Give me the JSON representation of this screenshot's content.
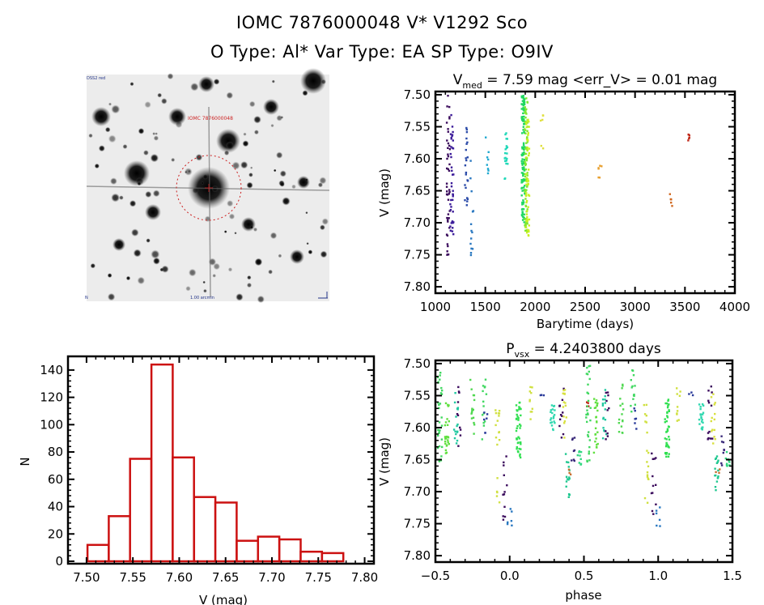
{
  "header": {
    "title_line1": "IOMC 7876000048    V* V1292 Sco",
    "title_line2": "O Type: Al*  Var Type: EA  SP Type: O9IV"
  },
  "finder_chart": {
    "label_top_left": "DSS2 red",
    "label_target": "IOMC 7876000048",
    "label_bottom": "1.00 arcmin",
    "label_bottom_left": "N",
    "compass_icon": "east-arrow",
    "circle_color": "#cc2222"
  },
  "chart_data": [
    {
      "type": "scatter",
      "id": "lightcurve",
      "title": "V_med = 7.59 mag <err_V> = 0.01 mag",
      "title_parts": {
        "v": "V",
        "sub": "med",
        "rest": " = 7.59 mag <err_V> = 0.01 mag"
      },
      "xlabel": "Barytime (days)",
      "ylabel": "V (mag)",
      "xlim": [
        1000,
        4000
      ],
      "ylim": [
        7.81,
        7.495
      ],
      "y_inverted": true,
      "xticks": [
        1000,
        1500,
        2000,
        2500,
        3000,
        3500,
        4000
      ],
      "xtick_labels": [
        "1000",
        "1500",
        "2000",
        "2500",
        "3000",
        "3500",
        "4000"
      ],
      "yticks": [
        7.5,
        7.55,
        7.6,
        7.65,
        7.7,
        7.75,
        7.8
      ],
      "ytick_labels": [
        "7.50",
        "7.55",
        "7.60",
        "7.65",
        "7.70",
        "7.75",
        "7.80"
      ],
      "groups": [
        {
          "x": 1130,
          "color": "#3a0a5c",
          "ymin": 7.5,
          "ymax": 7.76,
          "n": 45
        },
        {
          "x": 1165,
          "color": "#3c1c9a",
          "ymin": 7.53,
          "ymax": 7.72,
          "n": 40
        },
        {
          "x": 1310,
          "color": "#2a4aa8",
          "ymin": 7.54,
          "ymax": 7.675,
          "n": 22
        },
        {
          "x": 1365,
          "color": "#2a78c0",
          "ymin": 7.59,
          "ymax": 7.76,
          "n": 14
        },
        {
          "x": 1520,
          "color": "#20a8d0",
          "ymin": 7.55,
          "ymax": 7.625,
          "n": 8
        },
        {
          "x": 1710,
          "color": "#20d8b8",
          "ymin": 7.56,
          "ymax": 7.64,
          "n": 20
        },
        {
          "x": 1880,
          "color": "#20d860",
          "ymin": 7.5,
          "ymax": 7.7,
          "n": 120
        },
        {
          "x": 1910,
          "color": "#80e830",
          "ymin": 7.505,
          "ymax": 7.72,
          "n": 80
        },
        {
          "x": 1925,
          "color": "#c8f020",
          "ymin": 7.535,
          "ymax": 7.73,
          "n": 50
        },
        {
          "x": 2070,
          "color": "#e0e040",
          "ymin": 7.53,
          "ymax": 7.59,
          "n": 6
        },
        {
          "x": 2650,
          "color": "#e8a030",
          "ymin": 7.61,
          "ymax": 7.64,
          "n": 6
        },
        {
          "x": 3360,
          "color": "#d06820",
          "ymin": 7.655,
          "ymax": 7.675,
          "n": 5
        },
        {
          "x": 3545,
          "color": "#c02a1a",
          "ymin": 7.56,
          "ymax": 7.578,
          "n": 5
        }
      ]
    },
    {
      "type": "bar",
      "id": "histogram",
      "title": "",
      "xlabel": "V (mag)",
      "ylabel": "N",
      "xlim": [
        7.48,
        7.81
      ],
      "ylim": [
        0,
        150
      ],
      "xticks": [
        7.5,
        7.55,
        7.6,
        7.65,
        7.7,
        7.75,
        7.8
      ],
      "xtick_labels": [
        "7.50",
        "7.55",
        "7.60",
        "7.65",
        "7.70",
        "7.75",
        "7.80"
      ],
      "yticks": [
        0,
        20,
        40,
        60,
        80,
        100,
        120,
        140
      ],
      "ytick_labels": [
        "0",
        "20",
        "40",
        "60",
        "80",
        "100",
        "120",
        "140"
      ],
      "bin_edges": [
        7.501,
        7.524,
        7.547,
        7.57,
        7.593,
        7.616,
        7.639,
        7.662,
        7.685,
        7.708,
        7.731,
        7.754,
        7.777
      ],
      "values": [
        12,
        33,
        75,
        144,
        76,
        47,
        43,
        15,
        18,
        16,
        7,
        6
      ],
      "bar_color": "#cc1111"
    },
    {
      "type": "scatter",
      "id": "phased",
      "title": "P_vsx = 4.2403800 days",
      "title_parts": {
        "v": "P",
        "sub": "vsx",
        "rest": " = 4.2403800 days"
      },
      "xlabel": "phase",
      "ylabel": "V (mag)",
      "xlim": [
        -0.5,
        1.5
      ],
      "ylim": [
        7.81,
        7.495
      ],
      "y_inverted": true,
      "xticks": [
        -0.5,
        0.0,
        0.5,
        1.0,
        1.5
      ],
      "xtick_labels": [
        "−0.5",
        "0.0",
        "0.5",
        "1.0",
        "1.5"
      ],
      "yticks": [
        7.5,
        7.55,
        7.6,
        7.65,
        7.7,
        7.75,
        7.8
      ],
      "ytick_labels": [
        "7.50",
        "7.55",
        "7.60",
        "7.65",
        "7.70",
        "7.75",
        "7.80"
      ],
      "period_days": 4.24038,
      "primary_eclipse": {
        "phase": 0.0,
        "depth_mag": 7.755
      },
      "secondary_eclipse": {
        "phase": 0.4,
        "depth_mag": 7.71
      },
      "out_of_eclipse_mag": [
        7.5,
        7.65
      ],
      "clusters": [
        {
          "phase": -0.47,
          "color": "#40d860",
          "ymin": 7.5,
          "ymax": 7.655,
          "n": 30
        },
        {
          "phase": -0.42,
          "color": "#60e040",
          "ymin": 7.555,
          "ymax": 7.64,
          "n": 25
        },
        {
          "phase": -0.36,
          "color": "#20c8a0",
          "ymin": 7.54,
          "ymax": 7.625,
          "n": 16
        },
        {
          "phase": -0.34,
          "color": "#3a0a5c",
          "ymin": 7.535,
          "ymax": 7.63,
          "n": 10
        },
        {
          "phase": -0.25,
          "color": "#50d850",
          "ymin": 7.525,
          "ymax": 7.61,
          "n": 16
        },
        {
          "phase": -0.17,
          "color": "#40d860",
          "ymin": 7.505,
          "ymax": 7.62,
          "n": 14
        },
        {
          "phase": -0.16,
          "color": "#2a3a9a",
          "ymin": 7.57,
          "ymax": 7.61,
          "n": 6
        },
        {
          "phase": -0.08,
          "color": "#d0e040",
          "ymin": 7.555,
          "ymax": 7.72,
          "n": 18
        },
        {
          "phase": -0.03,
          "color": "#3a0a5c",
          "ymin": 7.64,
          "ymax": 7.75,
          "n": 12
        },
        {
          "phase": 0.0,
          "color": "#2a78c0",
          "ymin": 7.72,
          "ymax": 7.76,
          "n": 6
        },
        {
          "phase": 0.06,
          "color": "#30e050",
          "ymin": 7.555,
          "ymax": 7.65,
          "n": 40
        },
        {
          "phase": 0.14,
          "color": "#d0e040",
          "ymin": 7.535,
          "ymax": 7.59,
          "n": 10
        },
        {
          "phase": 0.22,
          "color": "#2a3a9a",
          "ymin": 7.535,
          "ymax": 7.55,
          "n": 3
        },
        {
          "phase": 0.29,
          "color": "#30d8b0",
          "ymin": 7.56,
          "ymax": 7.605,
          "n": 20
        },
        {
          "phase": 0.35,
          "color": "#3a0a5c",
          "ymin": 7.535,
          "ymax": 7.62,
          "n": 12
        },
        {
          "phase": 0.37,
          "color": "#d8e040",
          "ymin": 7.54,
          "ymax": 7.63,
          "n": 14
        },
        {
          "phase": 0.39,
          "color": "#20c890",
          "ymin": 7.64,
          "ymax": 7.71,
          "n": 16
        },
        {
          "phase": 0.4,
          "color": "#c87030",
          "ymin": 7.66,
          "ymax": 7.68,
          "n": 3
        },
        {
          "phase": 0.43,
          "color": "#3a2a7a",
          "ymin": 7.61,
          "ymax": 7.66,
          "n": 8
        },
        {
          "phase": 0.47,
          "color": "#30d880",
          "ymin": 7.63,
          "ymax": 7.66,
          "n": 10
        },
        {
          "phase": 0.52,
          "color": "#c02a1a",
          "ymin": 7.56,
          "ymax": 7.58,
          "n": 4
        },
        {
          "phase": 0.53,
          "color": "#40d860",
          "ymin": 7.5,
          "ymax": 7.655,
          "n": 30
        },
        {
          "phase": 0.58,
          "color": "#60e040",
          "ymin": 7.555,
          "ymax": 7.64,
          "n": 25
        },
        {
          "phase": 0.64,
          "color": "#20c8a0",
          "ymin": 7.54,
          "ymax": 7.625,
          "n": 16
        },
        {
          "phase": 0.66,
          "color": "#3a0a5c",
          "ymin": 7.535,
          "ymax": 7.63,
          "n": 10
        },
        {
          "phase": 0.75,
          "color": "#50d850",
          "ymin": 7.525,
          "ymax": 7.61,
          "n": 16
        },
        {
          "phase": 0.83,
          "color": "#40d860",
          "ymin": 7.505,
          "ymax": 7.62,
          "n": 14
        },
        {
          "phase": 0.84,
          "color": "#2a3a9a",
          "ymin": 7.57,
          "ymax": 7.61,
          "n": 6
        },
        {
          "phase": 0.92,
          "color": "#d0e040",
          "ymin": 7.555,
          "ymax": 7.72,
          "n": 18
        },
        {
          "phase": 0.97,
          "color": "#3a0a5c",
          "ymin": 7.64,
          "ymax": 7.75,
          "n": 12
        },
        {
          "phase": 1.0,
          "color": "#2a78c0",
          "ymin": 7.72,
          "ymax": 7.76,
          "n": 6
        },
        {
          "phase": 1.06,
          "color": "#30e050",
          "ymin": 7.555,
          "ymax": 7.65,
          "n": 40
        },
        {
          "phase": 1.14,
          "color": "#d0e040",
          "ymin": 7.535,
          "ymax": 7.59,
          "n": 10
        },
        {
          "phase": 1.22,
          "color": "#2a3a9a",
          "ymin": 7.535,
          "ymax": 7.55,
          "n": 3
        },
        {
          "phase": 1.29,
          "color": "#30d8b0",
          "ymin": 7.56,
          "ymax": 7.605,
          "n": 20
        },
        {
          "phase": 1.35,
          "color": "#3a0a5c",
          "ymin": 7.535,
          "ymax": 7.62,
          "n": 12
        },
        {
          "phase": 1.37,
          "color": "#d8e040",
          "ymin": 7.54,
          "ymax": 7.63,
          "n": 14
        },
        {
          "phase": 1.39,
          "color": "#20c890",
          "ymin": 7.64,
          "ymax": 7.71,
          "n": 16
        },
        {
          "phase": 1.4,
          "color": "#c87030",
          "ymin": 7.66,
          "ymax": 7.68,
          "n": 3
        },
        {
          "phase": 1.43,
          "color": "#3a2a7a",
          "ymin": 7.61,
          "ymax": 7.66,
          "n": 8
        },
        {
          "phase": 1.47,
          "color": "#30d880",
          "ymin": 7.63,
          "ymax": 7.66,
          "n": 10
        }
      ]
    }
  ]
}
